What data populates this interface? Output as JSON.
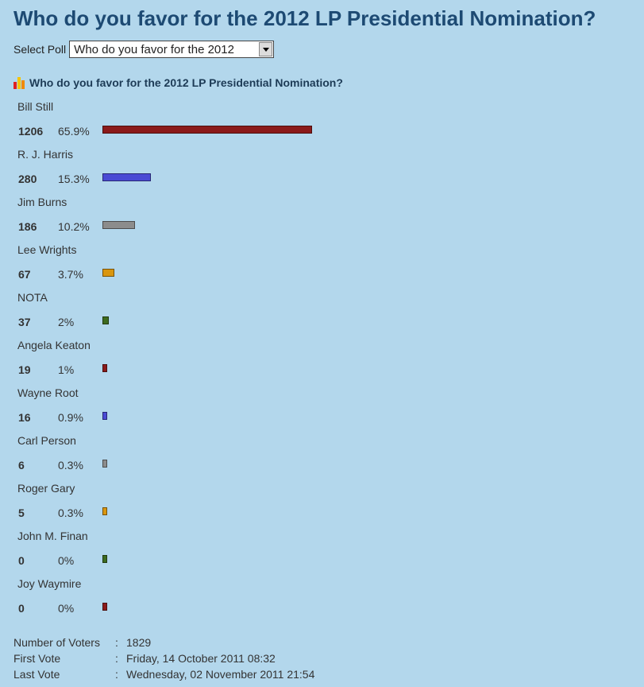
{
  "page": {
    "title": "Who do you favor for the 2012 LP Presidential Nomination?"
  },
  "select_poll": {
    "label": "Select Poll",
    "selected": "Who do you favor for the 2012"
  },
  "poll": {
    "heading": "Who do you favor for the 2012 LP Presidential Nomination?",
    "icon": "poll-chart-icon",
    "options": [
      {
        "name": "Bill Still",
        "votes": "1206",
        "percent": "65.9%",
        "share": 0.659,
        "color": "#8b1a1a"
      },
      {
        "name": "R. J. Harris",
        "votes": "280",
        "percent": "15.3%",
        "share": 0.153,
        "color": "#4a4ad4"
      },
      {
        "name": "Jim Burns",
        "votes": "186",
        "percent": "10.2%",
        "share": 0.102,
        "color": "#8c8c8c"
      },
      {
        "name": "Lee Wrights",
        "votes": "67",
        "percent": "3.7%",
        "share": 0.037,
        "color": "#d9960f"
      },
      {
        "name": "NOTA",
        "votes": "37",
        "percent": "2%",
        "share": 0.02,
        "color": "#3d6b1f"
      },
      {
        "name": "Angela Keaton",
        "votes": "19",
        "percent": "1%",
        "share": 0.01,
        "color": "#8b1a1a"
      },
      {
        "name": "Wayne Root",
        "votes": "16",
        "percent": "0.9%",
        "share": 0.009,
        "color": "#4a4ad4"
      },
      {
        "name": "Carl Person",
        "votes": "6",
        "percent": "0.3%",
        "share": 0.003,
        "color": "#8c8c8c"
      },
      {
        "name": "Roger Gary",
        "votes": "5",
        "percent": "0.3%",
        "share": 0.003,
        "color": "#d9960f"
      },
      {
        "name": "John M. Finan",
        "votes": "0",
        "percent": "0%",
        "share": 0,
        "color": "#3d6b1f"
      },
      {
        "name": "Joy Waymire",
        "votes": "0",
        "percent": "0%",
        "share": 0,
        "color": "#8b1a1a"
      }
    ]
  },
  "stats": {
    "voters_label": "Number of Voters",
    "voters_value": "1829",
    "first_label": "First Vote",
    "first_value": "Friday, 14 October 2011 08:32",
    "last_label": "Last Vote",
    "last_value": "Wednesday, 02 November 2011 21:54",
    "separator": ":"
  }
}
